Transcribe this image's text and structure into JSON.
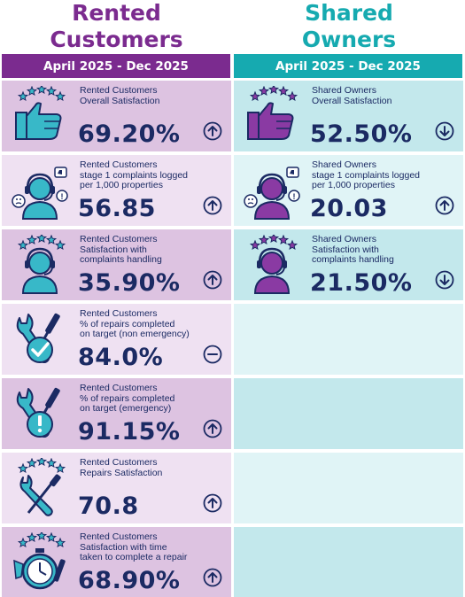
{
  "headers": {
    "rented_line1": "Rented",
    "rented_line2": "Customers",
    "shared_line1": "Shared",
    "shared_line2": "Owners"
  },
  "periods": {
    "rented": "April 2025 - Dec 2025",
    "shared": "April 2025 - Dec 2025"
  },
  "colors": {
    "rented_accent": "#7b2b8f",
    "shared_accent": "#16aab0",
    "text_navy": "#1b2a63"
  },
  "rented": [
    {
      "label": "Rented Customers\nOverall Satisfaction",
      "value": "69.20%",
      "trend": "up",
      "icon": "thumbs-up-stars-icon"
    },
    {
      "label": "Rented Customers\nstage 1 complaints logged\nper 1,000 properties",
      "value": "56.85",
      "trend": "up",
      "icon": "agent-headset-complaints-icon"
    },
    {
      "label": "Rented Customers\nSatisfaction with\ncomplaints handling",
      "value": "35.90%",
      "trend": "up",
      "icon": "agent-headset-stars-icon"
    },
    {
      "label": "Rented Customers\n% of repairs completed\non target (non emergency)",
      "value": "84.0%",
      "trend": "neutral",
      "icon": "tools-check-icon"
    },
    {
      "label": "Rented Customers\n% of repairs completed\non target (emergency)",
      "value": "91.15%",
      "trend": "up",
      "icon": "tools-alert-icon"
    },
    {
      "label": "Rented Customers\nRepairs Satisfaction",
      "value": "70.8",
      "trend": "up",
      "icon": "tools-stars-icon"
    },
    {
      "label": "Rented Customers\nSatisfaction with time\ntaken to complete a repair",
      "value": "68.90%",
      "trend": "up",
      "icon": "stopwatch-tools-icon"
    }
  ],
  "shared": [
    {
      "label": "Shared Owners\nOverall Satisfaction",
      "value": "52.50%",
      "trend": "down",
      "icon": "thumbs-up-stars-icon"
    },
    {
      "label": "Shared Owners\nstage 1 complaints logged\nper 1,000 properties",
      "value": "20.03",
      "trend": "up",
      "icon": "agent-headset-complaints-icon"
    },
    {
      "label": "Shared Owners\nSatisfaction with\ncomplaints handling",
      "value": "21.50%",
      "trend": "down",
      "icon": "agent-headset-stars-icon"
    }
  ]
}
